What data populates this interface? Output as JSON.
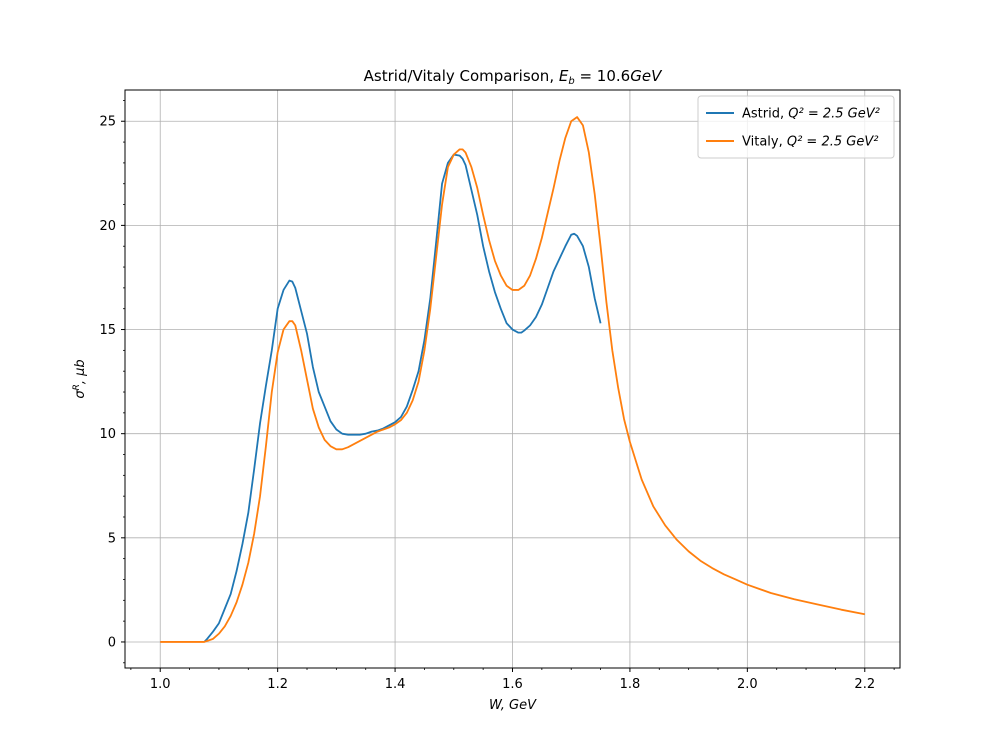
{
  "chart_data": {
    "type": "line",
    "title_prefix": "Astrid/Vitaly Comparison, ",
    "title_math": "E",
    "title_math_sub": "b",
    "title_math_rest": " = 10.6",
    "title_unit": "GeV",
    "xlabel": "W, GeV",
    "ylabel_sym": "σ",
    "ylabel_sup": "R",
    "ylabel_rest": ", μb",
    "xlim": [
      0.94,
      2.26
    ],
    "ylim": [
      -1.25,
      26.5
    ],
    "xticks": [
      1.0,
      1.2,
      1.4,
      1.6,
      1.8,
      2.0,
      2.2
    ],
    "xtick_labels": [
      "1.0",
      "1.2",
      "1.4",
      "1.6",
      "1.8",
      "2.0",
      "2.2"
    ],
    "yticks": [
      0,
      5,
      10,
      15,
      20,
      25
    ],
    "ytick_labels": [
      "0",
      "5",
      "10",
      "15",
      "20",
      "25"
    ],
    "grid": true,
    "legend_position": "top-right",
    "series": [
      {
        "name_prefix": "Astrid, ",
        "name_math": "Q² = 2.5 GeV²",
        "color": "#1f77b4",
        "x": [
          1.075,
          1.08,
          1.09,
          1.1,
          1.11,
          1.12,
          1.13,
          1.14,
          1.15,
          1.16,
          1.17,
          1.18,
          1.19,
          1.2,
          1.21,
          1.22,
          1.225,
          1.23,
          1.24,
          1.25,
          1.26,
          1.27,
          1.28,
          1.29,
          1.3,
          1.31,
          1.32,
          1.33,
          1.34,
          1.35,
          1.36,
          1.37,
          1.38,
          1.39,
          1.4,
          1.41,
          1.42,
          1.43,
          1.44,
          1.45,
          1.46,
          1.47,
          1.48,
          1.49,
          1.5,
          1.51,
          1.515,
          1.52,
          1.53,
          1.54,
          1.55,
          1.56,
          1.57,
          1.58,
          1.59,
          1.6,
          1.61,
          1.615,
          1.62,
          1.63,
          1.64,
          1.65,
          1.66,
          1.67,
          1.68,
          1.69,
          1.7,
          1.705,
          1.71,
          1.72,
          1.73,
          1.74,
          1.75
        ],
        "y": [
          0.0,
          0.15,
          0.5,
          0.9,
          1.6,
          2.3,
          3.4,
          4.7,
          6.2,
          8.3,
          10.5,
          12.3,
          14.0,
          16.0,
          16.9,
          17.35,
          17.3,
          17.0,
          15.9,
          14.8,
          13.2,
          12.0,
          11.3,
          10.6,
          10.2,
          10.0,
          9.95,
          9.95,
          9.95,
          10.0,
          10.1,
          10.15,
          10.25,
          10.4,
          10.55,
          10.8,
          11.3,
          12.1,
          13.0,
          14.5,
          16.5,
          19.2,
          22.0,
          23.0,
          23.4,
          23.35,
          23.2,
          22.9,
          21.7,
          20.5,
          19.0,
          17.8,
          16.8,
          16.0,
          15.3,
          15.0,
          14.85,
          14.85,
          14.95,
          15.2,
          15.6,
          16.2,
          17.0,
          17.8,
          18.4,
          19.0,
          19.55,
          19.6,
          19.5,
          19.0,
          18.0,
          16.5,
          15.3
        ]
      },
      {
        "name_prefix": "Vitaly, ",
        "name_math": "Q² = 2.5 GeV²",
        "color": "#ff7f0e",
        "x": [
          1.0,
          1.04,
          1.075,
          1.09,
          1.1,
          1.11,
          1.12,
          1.13,
          1.14,
          1.15,
          1.16,
          1.17,
          1.18,
          1.19,
          1.2,
          1.21,
          1.22,
          1.225,
          1.23,
          1.24,
          1.25,
          1.26,
          1.27,
          1.28,
          1.29,
          1.3,
          1.31,
          1.32,
          1.33,
          1.34,
          1.35,
          1.36,
          1.37,
          1.38,
          1.39,
          1.4,
          1.41,
          1.42,
          1.43,
          1.44,
          1.45,
          1.46,
          1.47,
          1.48,
          1.49,
          1.5,
          1.51,
          1.515,
          1.52,
          1.53,
          1.54,
          1.55,
          1.56,
          1.57,
          1.58,
          1.59,
          1.6,
          1.61,
          1.62,
          1.63,
          1.64,
          1.65,
          1.66,
          1.67,
          1.68,
          1.69,
          1.7,
          1.71,
          1.72,
          1.73,
          1.74,
          1.75,
          1.76,
          1.77,
          1.78,
          1.79,
          1.8,
          1.82,
          1.84,
          1.86,
          1.88,
          1.9,
          1.92,
          1.94,
          1.96,
          1.98,
          2.0,
          2.04,
          2.08,
          2.12,
          2.16,
          2.2
        ],
        "y": [
          0.0,
          0.0,
          0.0,
          0.15,
          0.4,
          0.75,
          1.25,
          1.9,
          2.75,
          3.8,
          5.2,
          7.0,
          9.4,
          12.0,
          13.9,
          15.0,
          15.4,
          15.4,
          15.2,
          14.0,
          12.6,
          11.2,
          10.3,
          9.7,
          9.4,
          9.25,
          9.25,
          9.35,
          9.5,
          9.65,
          9.8,
          9.95,
          10.1,
          10.2,
          10.3,
          10.45,
          10.65,
          11.0,
          11.6,
          12.5,
          14.0,
          16.0,
          18.5,
          21.0,
          22.8,
          23.4,
          23.65,
          23.65,
          23.5,
          22.8,
          21.8,
          20.5,
          19.3,
          18.3,
          17.6,
          17.1,
          16.9,
          16.9,
          17.1,
          17.6,
          18.4,
          19.4,
          20.6,
          21.8,
          23.1,
          24.2,
          25.0,
          25.2,
          24.8,
          23.5,
          21.5,
          19.0,
          16.3,
          14.0,
          12.2,
          10.7,
          9.6,
          7.8,
          6.5,
          5.6,
          4.9,
          4.35,
          3.9,
          3.55,
          3.25,
          3.0,
          2.75,
          2.35,
          2.05,
          1.8,
          1.55,
          1.33
        ]
      }
    ]
  }
}
